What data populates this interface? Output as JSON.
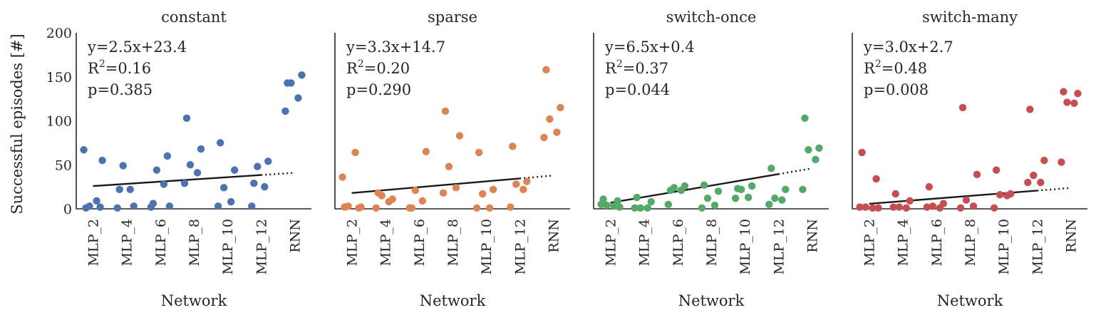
{
  "figure": {
    "ylabel": "Successful episodes [#]",
    "xlabel": "Network",
    "yticks": [
      "0",
      "50",
      "100",
      "150",
      "200"
    ]
  },
  "chart_data": [
    {
      "type": "scatter",
      "title": "constant",
      "color": "#4c72b0",
      "xlabel": "Network",
      "ylabel": "Successful episodes [#]",
      "categories": [
        "MLP_2",
        "MLP_4",
        "MLP_6",
        "MLP_8",
        "MLP_10",
        "MLP_12",
        "RNN"
      ],
      "ylim": [
        0,
        200
      ],
      "points": [
        [
          1,
          2,
          3,
          9,
          67,
          55
        ],
        [
          22,
          3,
          49,
          22,
          1
        ],
        [
          6,
          60,
          44,
          28,
          2,
          3
        ],
        [
          103,
          68,
          50,
          41,
          29
        ],
        [
          75,
          44,
          24,
          8,
          3
        ],
        [
          29,
          54,
          48,
          25,
          3
        ],
        [
          143,
          152,
          143,
          126,
          111
        ]
      ],
      "regression": {
        "slope": 2.5,
        "intercept": 23.4
      },
      "annotation": {
        "equation": "y=2.5x+23.4",
        "r2_prefix": "R",
        "r2_sup": "2",
        "r2_value": "=0.16",
        "p": "p=0.385"
      }
    },
    {
      "type": "scatter",
      "title": "sparse",
      "color": "#dd8452",
      "xlabel": "Network",
      "ylabel": "",
      "categories": [
        "MLP_2",
        "MLP_4",
        "MLP_6",
        "MLP_8",
        "MLP_10",
        "MLP_12",
        "RNN"
      ],
      "ylim": [
        0,
        200
      ],
      "points": [
        [
          2,
          1,
          3,
          64,
          36,
          2
        ],
        [
          18,
          11,
          15,
          8,
          1
        ],
        [
          1,
          65,
          21,
          9,
          1
        ],
        [
          111,
          83,
          48,
          24,
          18
        ],
        [
          64,
          22,
          17,
          1,
          1
        ],
        [
          71,
          31,
          28,
          22,
          2
        ],
        [
          158,
          115,
          102,
          87,
          81
        ]
      ],
      "regression": {
        "slope": 3.3,
        "intercept": 14.7
      },
      "annotation": {
        "equation": "y=3.3x+14.7",
        "r2_prefix": "R",
        "r2_sup": "2",
        "r2_value": "=0.20",
        "p": "p=0.290"
      }
    },
    {
      "type": "scatter",
      "title": "switch-once",
      "color": "#55a868",
      "xlabel": "Network",
      "ylabel": "",
      "categories": [
        "MLP_2",
        "MLP_4",
        "MLP_6",
        "MLP_8",
        "MLP_10",
        "MLP_12",
        "RNN"
      ],
      "ylim": [
        0,
        200
      ],
      "points": [
        [
          11,
          9,
          4,
          3,
          5,
          2
        ],
        [
          13,
          8,
          1,
          1,
          1
        ],
        [
          21,
          26,
          24,
          21,
          5
        ],
        [
          27,
          20,
          12,
          4,
          1
        ],
        [
          23,
          26,
          22,
          13,
          12
        ],
        [
          46,
          22,
          12,
          10,
          5
        ],
        [
          103,
          69,
          67,
          56,
          22
        ]
      ],
      "regression": {
        "slope": 6.5,
        "intercept": 0.4
      },
      "annotation": {
        "equation": "y=6.5x+0.4",
        "r2_prefix": "R",
        "r2_sup": "2",
        "r2_value": "=0.37",
        "p": "p=0.044"
      }
    },
    {
      "type": "scatter",
      "title": "switch-many",
      "color": "#c44e52",
      "xlabel": "Network",
      "ylabel": "",
      "categories": [
        "MLP_2",
        "MLP_4",
        "MLP_6",
        "MLP_8",
        "MLP_10",
        "MLP_12",
        "RNN"
      ],
      "ylim": [
        0,
        200
      ],
      "points": [
        [
          64,
          34,
          2,
          1,
          2,
          1
        ],
        [
          17,
          9,
          2,
          1,
          2
        ],
        [
          25,
          6,
          3,
          1,
          2
        ],
        [
          115,
          39,
          10,
          3,
          1
        ],
        [
          44,
          17,
          16,
          15,
          1
        ],
        [
          113,
          55,
          38,
          30,
          30
        ],
        [
          133,
          131,
          121,
          120,
          53
        ]
      ],
      "regression": {
        "slope": 3.0,
        "intercept": 2.7
      },
      "annotation": {
        "equation": "y=3.0x+2.7",
        "r2_prefix": "R",
        "r2_sup": "2",
        "r2_value": "=0.48",
        "p": "p=0.008"
      }
    }
  ]
}
